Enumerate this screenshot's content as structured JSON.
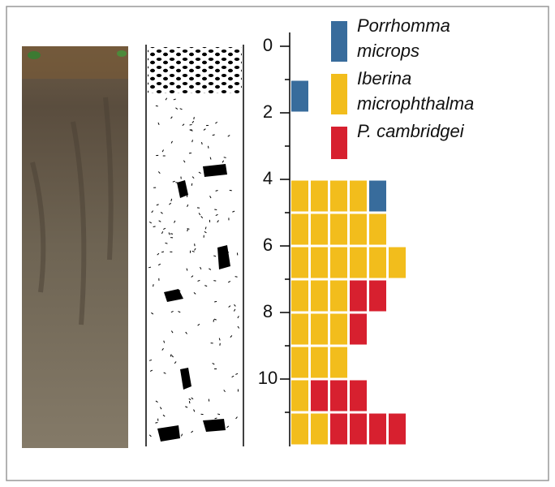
{
  "chart_data": {
    "type": "bar",
    "orientation": "horizontal",
    "stacked": true,
    "categories": [
      null,
      null,
      null,
      null,
      null,
      null,
      null,
      null,
      null,
      null,
      null,
      null
    ],
    "ylim": [
      0,
      12
    ],
    "yticks": [
      0,
      2,
      4,
      6,
      8,
      10
    ],
    "series": [
      {
        "name": "Porrhomma microps",
        "color": "#386c9c",
        "values": [
          0,
          1,
          0,
          0,
          1,
          0,
          0,
          0,
          0,
          0,
          0,
          0
        ]
      },
      {
        "name": "Iberina microphthalma",
        "color": "#f2bd1c",
        "values": [
          0,
          0,
          0,
          0,
          4,
          5,
          6,
          3,
          3,
          3,
          1,
          2
        ]
      },
      {
        "name": "P. cambridgei",
        "color": "#d7202f",
        "values": [
          0,
          0,
          0,
          0,
          0,
          0,
          0,
          2,
          1,
          0,
          3,
          4
        ]
      }
    ]
  }
}
